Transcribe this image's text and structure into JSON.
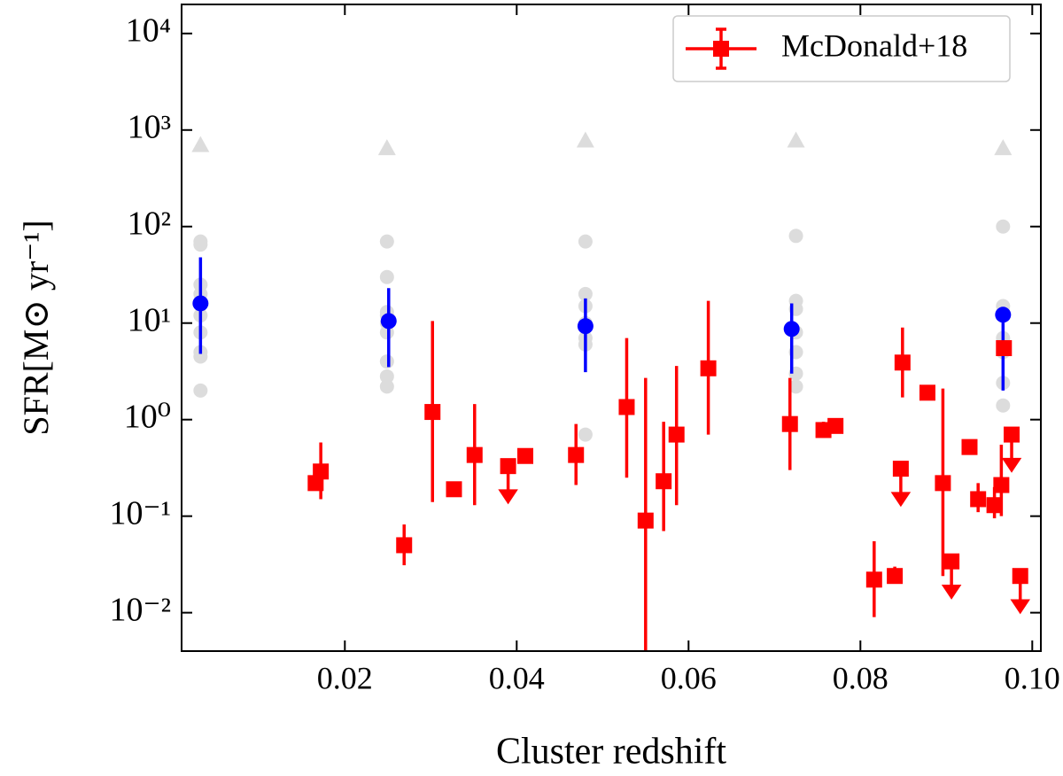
{
  "chart_data": {
    "type": "scatter",
    "log_y": true,
    "legend": "upper right",
    "x_label": "Cluster redshift",
    "y_label": "SFR[M⊙ yr⁻¹]",
    "xlim": [
      0.001,
      0.101
    ],
    "ylim": [
      0.004,
      20000
    ],
    "xticks": [
      0.02,
      0.04,
      0.06,
      0.08,
      {
        "value": 0.1,
        "label": "0.10"
      }
    ],
    "yticks": [
      {
        "value": 0.01,
        "label": "10⁻²"
      },
      {
        "value": 0.1,
        "label": "10⁻¹"
      },
      {
        "value": 1,
        "label": "10⁰"
      },
      {
        "value": 10,
        "label": "10¹"
      },
      {
        "value": 100,
        "label": "10²"
      },
      {
        "value": 1000,
        "label": "10³"
      },
      {
        "value": 10000,
        "label": "10⁴"
      }
    ],
    "series": [
      {
        "marker": "triangle",
        "color": "#dcdcdc",
        "x": [
          0.0032,
          0.0249,
          0.048,
          0.0725,
          0.0966
        ],
        "values": [
          700,
          650,
          780,
          780,
          650
        ]
      },
      {
        "marker": "circle",
        "color": "#dcdcdc",
        "x": [
          0.0032,
          0.0032,
          0.0032,
          0.0032,
          0.0032,
          0.0032,
          0.0032,
          0.0032,
          0.0032,
          0.0249,
          0.0249,
          0.0249,
          0.0249,
          0.0249,
          0.0249,
          0.0249,
          0.0249,
          0.0249,
          0.048,
          0.048,
          0.048,
          0.048,
          0.048,
          0.048,
          0.048,
          0.0725,
          0.0725,
          0.0725,
          0.0725,
          0.0725,
          0.0725,
          0.0725,
          0.0966,
          0.0966,
          0.0966,
          0.0966,
          0.0966,
          0.0966,
          0.0966
        ],
        "values": [
          70,
          65,
          25,
          20,
          12,
          8,
          5,
          4.5,
          2,
          70,
          30,
          13,
          12,
          10,
          8,
          4,
          2.8,
          2.2,
          70,
          20,
          15,
          10,
          7,
          6,
          0.7,
          80,
          17,
          14,
          8,
          5,
          3,
          2.2,
          100,
          15,
          13,
          7,
          5,
          2.4,
          1.4
        ]
      },
      {
        "marker": "circle-large",
        "color": "#0000ff",
        "x": [
          0.0032,
          0.0251,
          0.048,
          0.072,
          0.0966
        ],
        "values": [
          16,
          10.5,
          9.3,
          8.7,
          12.2
        ],
        "yerr_minus": [
          11.2,
          7,
          6.2,
          5.7,
          10.2
        ],
        "yerr_plus": [
          32,
          12.5,
          8.7,
          7.3,
          1.8
        ]
      },
      {
        "name": "McDonald+18",
        "marker": "square",
        "color": "#ff0000",
        "x": [
          0.0166,
          0.0172,
          0.0269,
          0.0302,
          0.0327,
          0.0351,
          0.039,
          0.041,
          0.0469,
          0.0528,
          0.055,
          0.0571,
          0.0586,
          0.0623,
          0.0718,
          0.0757,
          0.0771,
          0.0816,
          0.084,
          0.0847,
          0.0849,
          0.0878,
          0.0896,
          0.0906,
          0.0927,
          0.0937,
          0.0956,
          0.0964,
          0.0967,
          0.0976,
          0.0986
        ],
        "values": [
          0.22,
          0.29,
          0.05,
          1.2,
          0.19,
          0.43,
          0.33,
          0.42,
          0.43,
          1.35,
          0.09,
          0.23,
          0.7,
          3.4,
          0.9,
          0.78,
          0.86,
          0.022,
          0.024,
          0.31,
          3.9,
          1.9,
          0.22,
          0.034,
          0.52,
          0.15,
          0.13,
          0.21,
          5.5,
          0.7,
          0.024
        ],
        "yerr_minus": [
          0,
          0.14,
          0.019,
          1.06,
          0,
          0.3,
          0,
          0,
          0.22,
          1.1,
          0.087,
          0.16,
          0.57,
          2.7,
          0.6,
          0.13,
          0,
          0.013,
          0.003,
          0,
          2.2,
          0,
          0.196,
          0,
          0,
          0.04,
          0.035,
          0.11,
          0,
          0,
          0
        ],
        "yerr_plus": [
          0,
          0.29,
          0.032,
          9.3,
          0,
          1.02,
          0,
          0,
          0.47,
          5.65,
          2.61,
          0.72,
          2.9,
          13.6,
          1.8,
          0.17,
          0,
          0.033,
          0.006,
          0,
          5.1,
          0,
          1.88,
          0,
          0,
          0.07,
          0.07,
          0.34,
          0,
          0,
          0
        ],
        "upper_limit": [
          false,
          false,
          false,
          false,
          false,
          false,
          true,
          false,
          false,
          false,
          false,
          false,
          false,
          false,
          false,
          false,
          false,
          false,
          false,
          true,
          false,
          false,
          false,
          true,
          false,
          false,
          false,
          false,
          false,
          true,
          true
        ]
      }
    ]
  }
}
